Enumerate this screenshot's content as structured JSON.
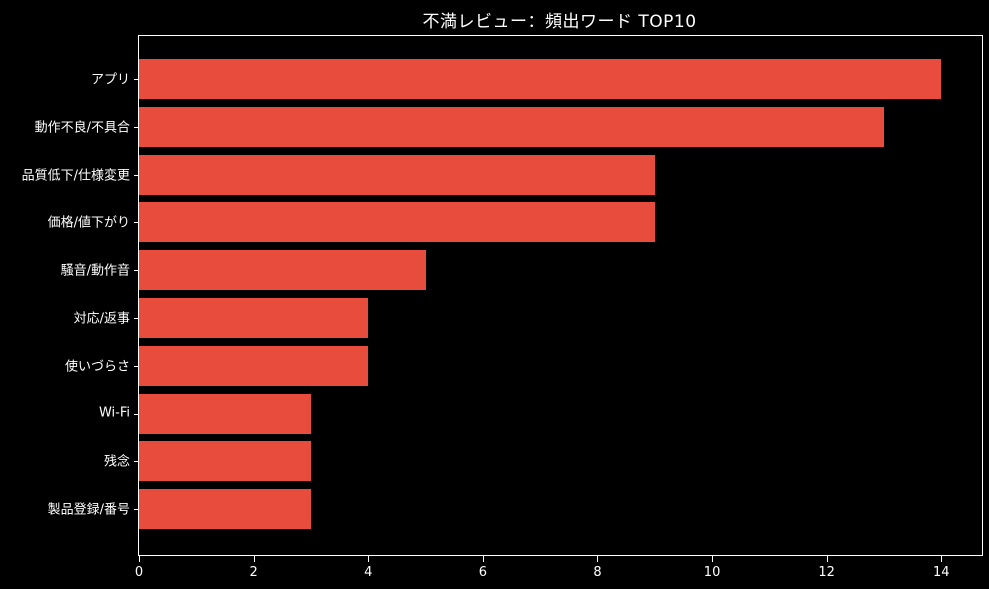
{
  "window": {
    "background_color": "#000000"
  },
  "colors": {
    "bar": "#e74c3c",
    "text": "#ffffff",
    "spine": "#ffffff"
  },
  "chart_data": {
    "type": "bar",
    "orientation": "horizontal",
    "title": "不満レビュー：頻出ワード TOP10",
    "categories": [
      "アプリ",
      "動作不良/不具合",
      "品質低下/仕様変更",
      "価格/値下がり",
      "騒音/動作音",
      "対応/返事",
      "使いづらさ",
      "Wi-Fi",
      "残念",
      "製品登録/番号"
    ],
    "values": [
      14,
      13,
      9,
      9,
      5,
      4,
      4,
      3,
      3,
      3
    ],
    "xlabel": "",
    "ylabel": "",
    "xlim": [
      0,
      14.71
    ],
    "xticks": [
      0,
      2,
      4,
      6,
      8,
      10,
      12,
      14
    ],
    "grid": false,
    "legend_position": "none",
    "bar_color": "#e74c3c",
    "background": "#000000"
  }
}
